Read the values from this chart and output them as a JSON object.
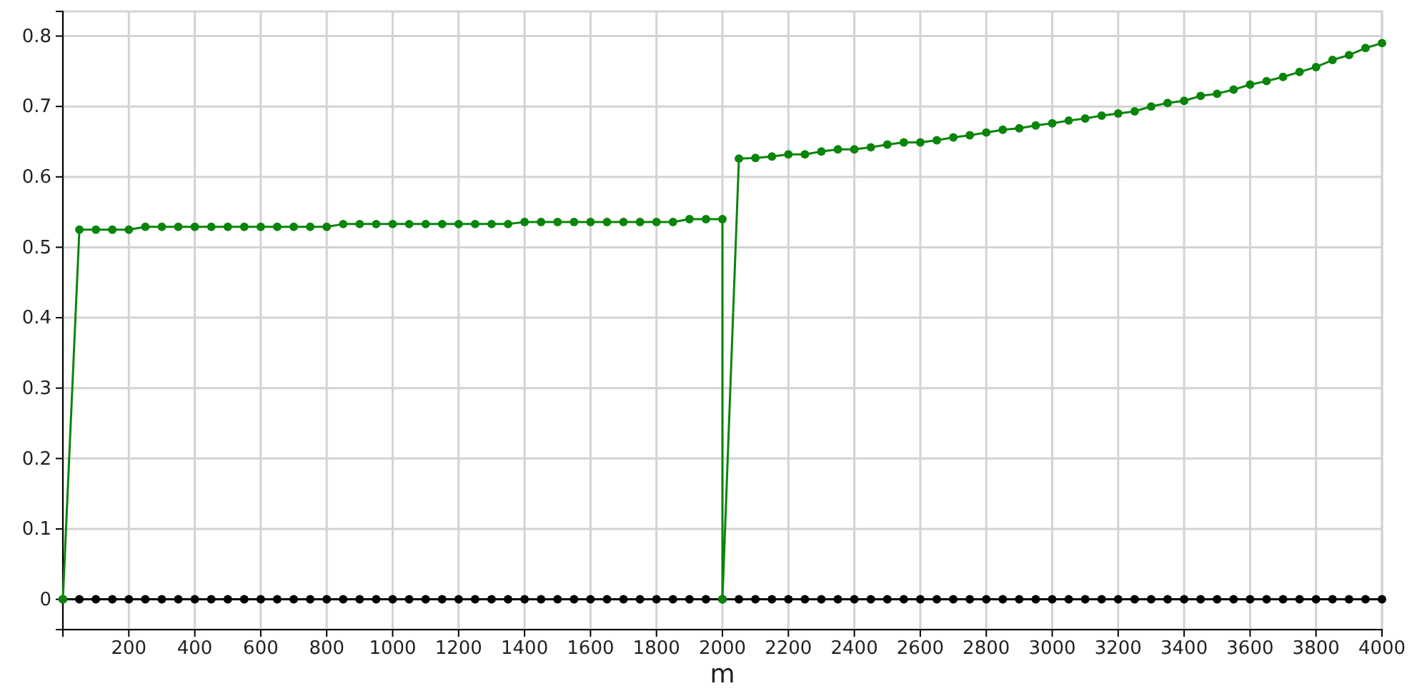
{
  "chart_data": {
    "type": "line",
    "xlabel": "m",
    "xlim": [
      0,
      4000
    ],
    "ylim": [
      -0.043,
      0.835
    ],
    "xticks": [
      {
        "value": 0,
        "label": null
      },
      200,
      400,
      600,
      800,
      1000,
      1200,
      1400,
      1600,
      1800,
      2000,
      2200,
      2400,
      2600,
      2800,
      3000,
      3200,
      3400,
      3600,
      3800,
      4000
    ],
    "yticks": [
      0,
      0.1,
      0.2,
      0.3,
      0.4,
      0.5,
      0.6,
      0.7,
      0.8
    ],
    "grid": true,
    "marker": "circle",
    "line_style": "solid",
    "series": [
      {
        "color": "#0a850a",
        "x": [
          0,
          50,
          100,
          150,
          200,
          250,
          300,
          350,
          400,
          450,
          500,
          550,
          600,
          650,
          700,
          750,
          800,
          850,
          900,
          950,
          1000,
          1050,
          1100,
          1150,
          1200,
          1250,
          1300,
          1350,
          1400,
          1450,
          1500,
          1550,
          1600,
          1650,
          1700,
          1750,
          1800,
          1850,
          1900,
          1950,
          2000,
          2000,
          2050,
          2100,
          2150,
          2200,
          2250,
          2300,
          2350,
          2400,
          2450,
          2500,
          2550,
          2600,
          2650,
          2700,
          2750,
          2800,
          2850,
          2900,
          2950,
          3000,
          3050,
          3100,
          3150,
          3200,
          3250,
          3300,
          3350,
          3400,
          3450,
          3500,
          3550,
          3600,
          3650,
          3700,
          3750,
          3800,
          3850,
          3900,
          3950,
          4000
        ],
        "values": [
          0,
          0.525,
          0.525,
          0.525,
          0.525,
          0.529,
          0.529,
          0.529,
          0.529,
          0.529,
          0.529,
          0.529,
          0.529,
          0.529,
          0.529,
          0.529,
          0.529,
          0.533,
          0.533,
          0.533,
          0.533,
          0.533,
          0.533,
          0.533,
          0.533,
          0.533,
          0.533,
          0.533,
          0.536,
          0.536,
          0.536,
          0.536,
          0.536,
          0.536,
          0.536,
          0.536,
          0.536,
          0.536,
          0.54,
          0.54,
          0.54,
          0,
          0.626,
          0.627,
          0.629,
          0.632,
          0.632,
          0.636,
          0.639,
          0.639,
          0.642,
          0.646,
          0.649,
          0.649,
          0.652,
          0.656,
          0.659,
          0.663,
          0.667,
          0.669,
          0.673,
          0.676,
          0.68,
          0.683,
          0.687,
          0.69,
          0.693,
          0.7,
          0.705,
          0.708,
          0.715,
          0.718,
          0.724,
          0.731,
          0.736,
          0.742,
          0.749,
          0.756,
          0.766,
          0.773,
          0.783,
          0.79
        ]
      },
      {
        "color": "#000000",
        "x": [
          0,
          50,
          100,
          150,
          200,
          250,
          300,
          350,
          400,
          450,
          500,
          550,
          600,
          650,
          700,
          750,
          800,
          850,
          900,
          950,
          1000,
          1050,
          1100,
          1150,
          1200,
          1250,
          1300,
          1350,
          1400,
          1450,
          1500,
          1550,
          1600,
          1650,
          1700,
          1750,
          1800,
          1850,
          1900,
          1950,
          2000,
          2050,
          2100,
          2150,
          2200,
          2250,
          2300,
          2350,
          2400,
          2450,
          2500,
          2550,
          2600,
          2650,
          2700,
          2750,
          2800,
          2850,
          2900,
          2950,
          3000,
          3050,
          3100,
          3150,
          3200,
          3250,
          3300,
          3350,
          3400,
          3450,
          3500,
          3550,
          3600,
          3650,
          3700,
          3750,
          3800,
          3850,
          3900,
          3950,
          4000
        ],
        "values": [
          0,
          0,
          0,
          0,
          0,
          0,
          0,
          0,
          0,
          0,
          0,
          0,
          0,
          0,
          0,
          0,
          0,
          0,
          0,
          0,
          0,
          0,
          0,
          0,
          0,
          0,
          0,
          0,
          0,
          0,
          0,
          0,
          0,
          0,
          0,
          0,
          0,
          0,
          0,
          0,
          0,
          0,
          0,
          0,
          0,
          0,
          0,
          0,
          0,
          0,
          0,
          0,
          0,
          0,
          0,
          0,
          0,
          0,
          0,
          0,
          0,
          0,
          0,
          0,
          0,
          0,
          0,
          0,
          0,
          0,
          0,
          0,
          0,
          0,
          0,
          0,
          0,
          0,
          0,
          0,
          0
        ]
      }
    ]
  }
}
